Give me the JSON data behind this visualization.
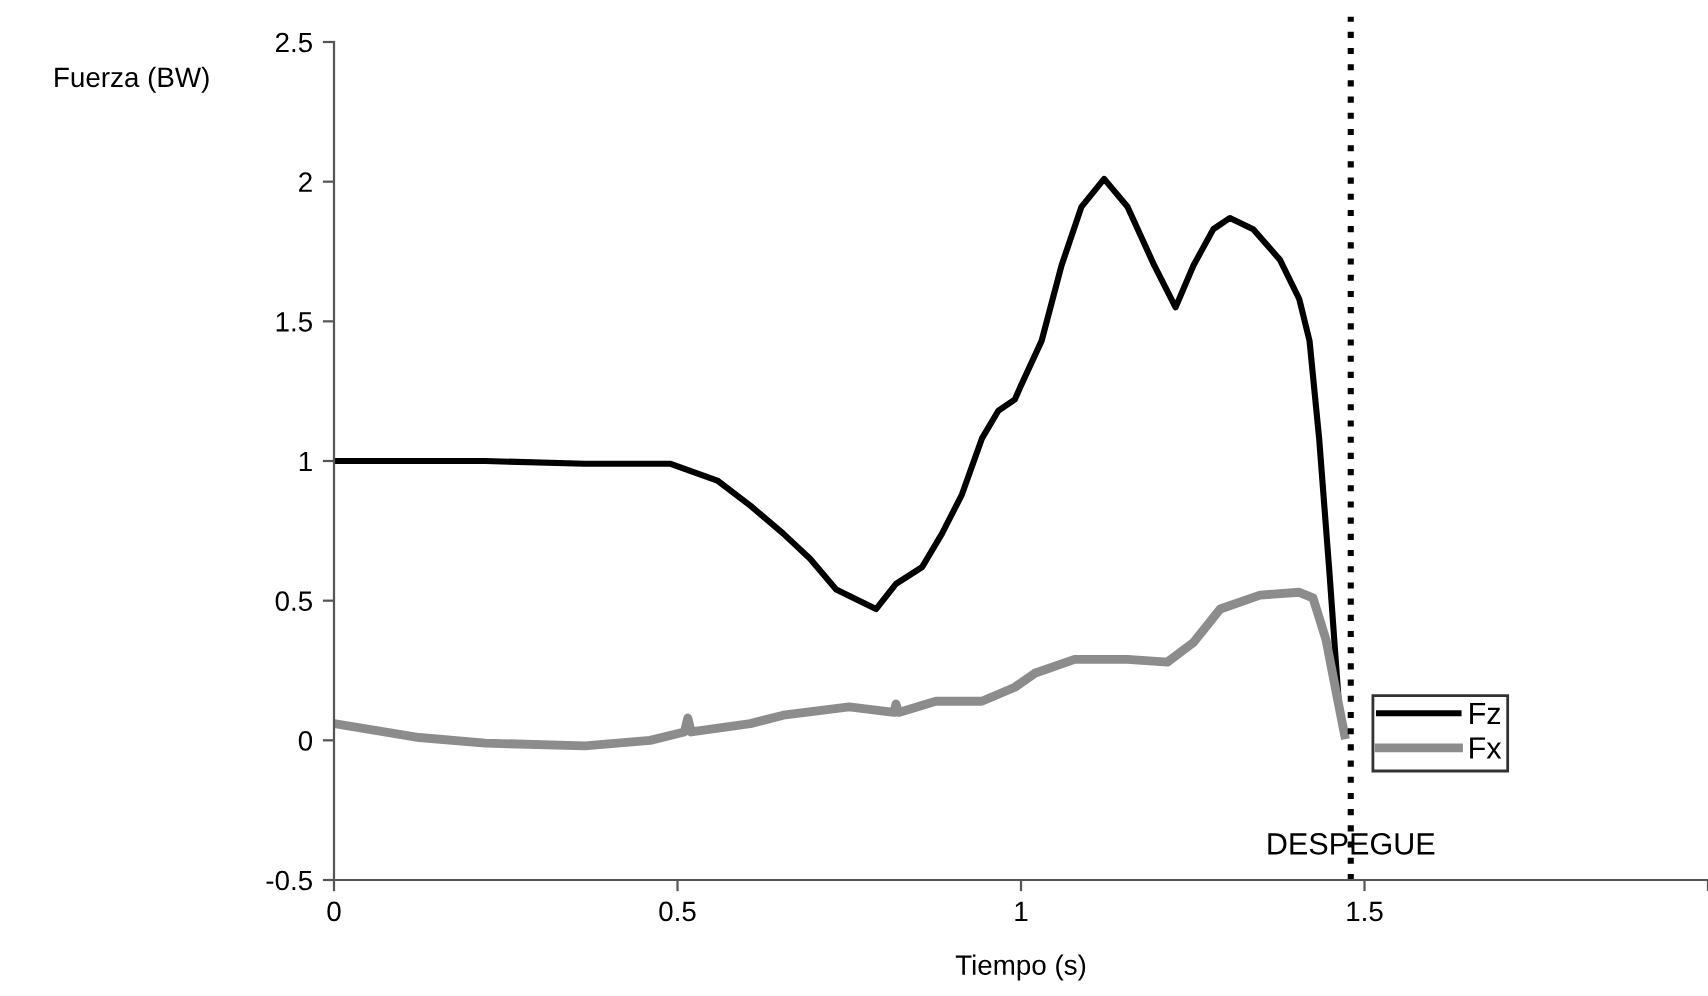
{
  "chart_data": {
    "type": "line",
    "xlabel": "Tiempo (s)",
    "ylabel": "Fuerza (BW)",
    "xlim": [
      0,
      2
    ],
    "xticks": [
      0,
      0.5,
      1,
      1.5,
      {
        "value": 2,
        "label": null
      }
    ],
    "ylim": [
      -0.5,
      2.5
    ],
    "yticks": [
      -0.5,
      0,
      0.5,
      1,
      1.5,
      2,
      2.5
    ],
    "grid": false,
    "legend": "bottom right",
    "marker": "none",
    "line_style": "solid",
    "ref_lines": [
      {
        "axis": "x",
        "value": 1.48,
        "label": "DESPEGUE",
        "color": "#000000",
        "line_style": "dotted"
      }
    ],
    "series": [
      {
        "name": "Fz",
        "color": "#000000",
        "x": [
          0,
          0.124,
          0.22,
          0.365,
          0.46,
          0.49,
          0.558,
          0.606,
          0.654,
          0.693,
          0.731,
          0.789,
          0.818,
          0.856,
          0.885,
          0.914,
          0.943,
          0.967,
          0.991,
          1.0,
          1.03,
          1.059,
          1.088,
          1.121,
          1.155,
          1.194,
          1.225,
          1.251,
          1.28,
          1.304,
          1.338,
          1.377,
          1.405,
          1.42,
          1.434,
          1.449,
          1.463,
          1.471
        ],
        "values": [
          1.0,
          1.0,
          1.0,
          0.99,
          0.99,
          0.99,
          0.93,
          0.84,
          0.74,
          0.65,
          0.54,
          0.47,
          0.56,
          0.62,
          0.74,
          0.88,
          1.08,
          1.18,
          1.22,
          1.27,
          1.43,
          1.7,
          1.91,
          2.01,
          1.91,
          1.7,
          1.55,
          1.7,
          1.83,
          1.87,
          1.83,
          1.72,
          1.58,
          1.43,
          1.08,
          0.6,
          0.12,
          0.02
        ]
      },
      {
        "name": "Fx",
        "color": "#8c8c8c",
        "x": [
          0,
          0.124,
          0.22,
          0.365,
          0.46,
          0.51,
          0.515,
          0.52,
          0.606,
          0.654,
          0.75,
          0.815,
          0.818,
          0.822,
          0.876,
          0.943,
          0.991,
          1.02,
          1.078,
          1.155,
          1.213,
          1.251,
          1.29,
          1.348,
          1.405,
          1.425,
          1.444,
          1.459,
          1.471
        ],
        "values": [
          0.06,
          0.01,
          -0.01,
          -0.02,
          0.0,
          0.03,
          0.08,
          0.03,
          0.06,
          0.09,
          0.12,
          0.1,
          0.13,
          0.1,
          0.14,
          0.14,
          0.19,
          0.24,
          0.29,
          0.29,
          0.28,
          0.35,
          0.47,
          0.52,
          0.53,
          0.51,
          0.36,
          0.17,
          0.02
        ]
      }
    ]
  }
}
